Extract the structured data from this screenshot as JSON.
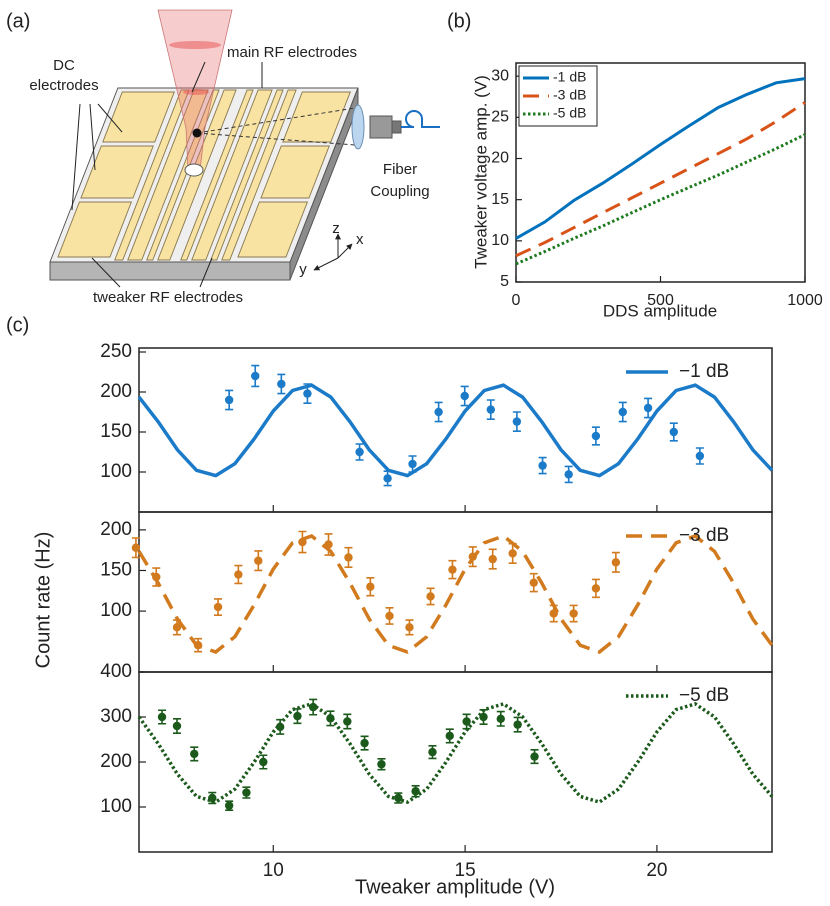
{
  "figure": {
    "panel_labels": [
      "(a)",
      "(b)",
      "(c)"
    ]
  },
  "diagram": {
    "main_rf_label": "main RF electrodes",
    "dc_label": [
      "DC",
      "electrodes"
    ],
    "fiber_label": [
      "Fiber",
      "Coupling"
    ],
    "tweaker_label": "tweaker RF electrodes",
    "axes_labels": [
      "z",
      "x",
      "y"
    ]
  },
  "chart_data": [
    {
      "type": "line",
      "x_label": "DDS amplitude",
      "y_label": "Tweaker voltage amp. (V)",
      "x": [
        0,
        100,
        200,
        300,
        400,
        500,
        600,
        700,
        800,
        900,
        1000
      ],
      "xlim": [
        0,
        1000
      ],
      "xticks": [
        0,
        500,
        1000
      ],
      "ylim": [
        5,
        31.6
      ],
      "yticks": [
        5,
        10,
        15,
        20,
        25,
        30
      ],
      "legend": "upper left",
      "series": [
        {
          "name": "-1 dB",
          "color": "#0072bd",
          "style": "solid",
          "values": [
            10.3,
            12.3,
            14.9,
            17.0,
            19.3,
            21.7,
            24.0,
            26.2,
            27.8,
            29.2,
            29.7
          ]
        },
        {
          "name": "-3 dB",
          "color": "#d95319",
          "style": "dashed",
          "values": [
            8.2,
            9.8,
            11.6,
            13.4,
            15.2,
            17.0,
            18.8,
            20.6,
            22.4,
            24.5,
            26.8
          ]
        },
        {
          "name": "-5 dB",
          "color": "#1e7a1e",
          "style": "dotted",
          "values": [
            7.2,
            8.7,
            10.3,
            11.8,
            13.4,
            15.0,
            16.5,
            18.0,
            19.6,
            21.2,
            22.9
          ]
        }
      ]
    },
    {
      "type": "errorbar",
      "xlim": [
        6.5,
        23
      ],
      "ylim": [
        50,
        255
      ],
      "yticks": [
        100,
        150,
        200,
        250
      ],
      "legend": "upper right",
      "series": [
        {
          "name": "−1 dB",
          "color": "#1b7bc9",
          "style": "solid",
          "fit_x": [
            6.5,
            7,
            7.5,
            8,
            8.5,
            9,
            9.5,
            10,
            10.5,
            11,
            11.5,
            12,
            12.5,
            13,
            13.5,
            14,
            14.5,
            15,
            15.5,
            16,
            16.5,
            17,
            17.5,
            18,
            18.5,
            19,
            19.5,
            20,
            20.5,
            21,
            21.5,
            22,
            22.5,
            23
          ],
          "fit_values": [
            193.6,
            162.7,
            127.7,
            102.1,
            95.5,
            110.4,
            141.3,
            176.3,
            201.9,
            208.5,
            193.6,
            162.7,
            127.7,
            102.1,
            95.5,
            110.4,
            141.3,
            176.3,
            201.9,
            208.5,
            193.6,
            162.7,
            127.7,
            102.1,
            95.5,
            110.4,
            141.3,
            176.3,
            201.9,
            208.5,
            193.6,
            162.7,
            127.7,
            102.1
          ],
          "x": [
            8.85,
            9.53,
            10.21,
            10.89,
            12.25,
            12.98,
            13.63,
            14.31,
            14.99,
            15.67,
            16.35,
            17.02,
            17.7,
            18.41,
            19.11,
            19.77,
            20.44,
            21.12
          ],
          "values": [
            190,
            220,
            210,
            198,
            125,
            92,
            110,
            175,
            195,
            178,
            163,
            108,
            97,
            145,
            175,
            180,
            150,
            120
          ],
          "errors": [
            12,
            13,
            12,
            12,
            10,
            9,
            10,
            12,
            12,
            12,
            12,
            10,
            10,
            11,
            12,
            12,
            11,
            10
          ]
        }
      ]
    },
    {
      "type": "errorbar",
      "y_label": "Count rate (Hz)",
      "xlim": [
        6.5,
        23
      ],
      "ylim": [
        25,
        222
      ],
      "yticks": [
        100,
        150,
        200
      ],
      "legend": "upper right",
      "series": [
        {
          "name": "−3 dB",
          "color": "#d27a1e",
          "style": "dashed",
          "fit_x": [
            6.5,
            7,
            7.5,
            8,
            8.5,
            9,
            9.5,
            10,
            10.5,
            11,
            11.5,
            12,
            12.5,
            13,
            13.5,
            14,
            14.5,
            15,
            15.5,
            16,
            16.5,
            17,
            17.5,
            18,
            18.5,
            19,
            19.5,
            20,
            20.5,
            21,
            21.5,
            22,
            22.5,
            23
          ],
          "fit_values": [
            173.5,
            134.5,
            90.3,
            57.9,
            49.6,
            68.5,
            107.5,
            151.7,
            184.1,
            192.4,
            173.5,
            134.5,
            90.3,
            57.9,
            49.6,
            68.5,
            107.5,
            151.7,
            184.1,
            192.4,
            173.5,
            134.5,
            90.3,
            57.9,
            49.6,
            68.5,
            107.5,
            151.7,
            184.1,
            192.4,
            173.5,
            134.5,
            90.3,
            57.9
          ],
          "x": [
            6.42,
            6.95,
            7.49,
            8.04,
            8.56,
            9.09,
            9.61,
            10.76,
            11.44,
            11.96,
            12.53,
            13.03,
            13.55,
            14.1,
            14.67,
            15.2,
            15.72,
            16.24,
            16.79,
            17.31,
            17.83,
            18.41,
            18.93
          ],
          "values": [
            178,
            142,
            80,
            58,
            105,
            145,
            162,
            185,
            182,
            166,
            130,
            94,
            80,
            118,
            151,
            167,
            164,
            171,
            135,
            97,
            97,
            128,
            160
          ],
          "errors": [
            12,
            11,
            9,
            8,
            10,
            11,
            12,
            13,
            13,
            12,
            11,
            10,
            9,
            10,
            11,
            12,
            12,
            12,
            11,
            10,
            10,
            11,
            12
          ]
        }
      ]
    },
    {
      "type": "errorbar",
      "x_label": "Tweaker amplitude (V)",
      "xlim": [
        6.5,
        23
      ],
      "xticks": [
        10,
        15,
        20
      ],
      "ylim": [
        0,
        400
      ],
      "yticks": [
        100,
        200,
        300,
        400
      ],
      "legend": "upper right",
      "series": [
        {
          "name": "−5 dB",
          "color": "#1c5a1c",
          "style": "dotted",
          "fit_x": [
            6.5,
            7,
            7.5,
            8,
            8.5,
            9,
            9.5,
            10,
            10.5,
            11,
            11.5,
            12,
            12.5,
            13,
            13.5,
            14,
            14.5,
            15,
            15.5,
            16,
            16.5,
            17,
            17.5,
            18,
            18.5,
            19,
            19.5,
            20,
            20.5,
            21,
            21.5,
            22,
            22.5,
            23
          ],
          "fit_values": [
            300.2,
            240.6,
            173.1,
            123.6,
            110.9,
            139.8,
            199.4,
            266.9,
            316.4,
            329.1,
            300.2,
            240.6,
            173.1,
            123.6,
            110.9,
            139.8,
            199.4,
            266.9,
            316.4,
            329.1,
            300.2,
            240.6,
            173.1,
            123.6,
            110.9,
            139.8,
            199.4,
            266.9,
            316.4,
            329.1,
            300.2,
            240.6,
            173.1,
            123.6
          ],
          "x": [
            7.1,
            7.49,
            7.94,
            8.41,
            8.85,
            9.3,
            9.74,
            10.18,
            10.63,
            11.04,
            11.49,
            11.93,
            12.38,
            12.82,
            13.26,
            13.71,
            14.15,
            14.6,
            15.04,
            15.48,
            15.93,
            16.37,
            16.81
          ],
          "values": [
            300,
            280,
            218,
            120,
            103,
            132,
            200,
            278,
            302,
            322,
            297,
            290,
            242,
            195,
            120,
            135,
            222,
            258,
            290,
            300,
            296,
            283,
            212
          ],
          "errors": [
            15,
            16,
            15,
            12,
            10,
            12,
            15,
            16,
            16,
            17,
            16,
            16,
            15,
            12,
            11,
            12,
            14,
            15,
            16,
            16,
            16,
            16,
            15
          ]
        }
      ]
    }
  ]
}
